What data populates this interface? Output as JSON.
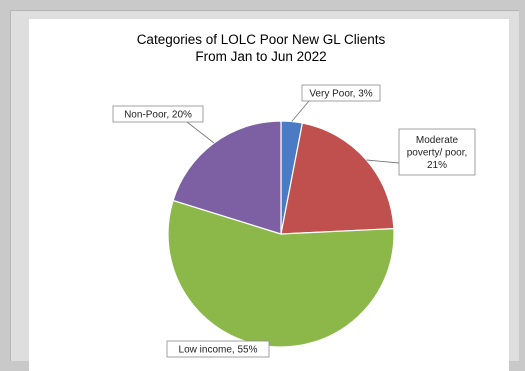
{
  "chart_data": {
    "type": "pie",
    "title": [
      "Categories of LOLC Poor New GL Clients",
      "From Jan to Jun 2022"
    ],
    "start_angle_deg": 90,
    "direction": "clockwise",
    "slices": [
      {
        "category": "Very Poor",
        "value": 3,
        "label": "Very Poor, 3%",
        "color": "#4a7bc4"
      },
      {
        "category": "Moderate poverty/ poor",
        "value": 21,
        "label": [
          "Moderate",
          "poverty/ poor,",
          "21%"
        ],
        "color": "#c0504d"
      },
      {
        "category": "Low income",
        "value": 55,
        "label": "Low income, 55%",
        "color": "#8cb84a"
      },
      {
        "category": "Non-Poor",
        "value": 20,
        "label": "Non-Poor, 20%",
        "color": "#7d5fa3"
      }
    ],
    "legend": "none"
  }
}
